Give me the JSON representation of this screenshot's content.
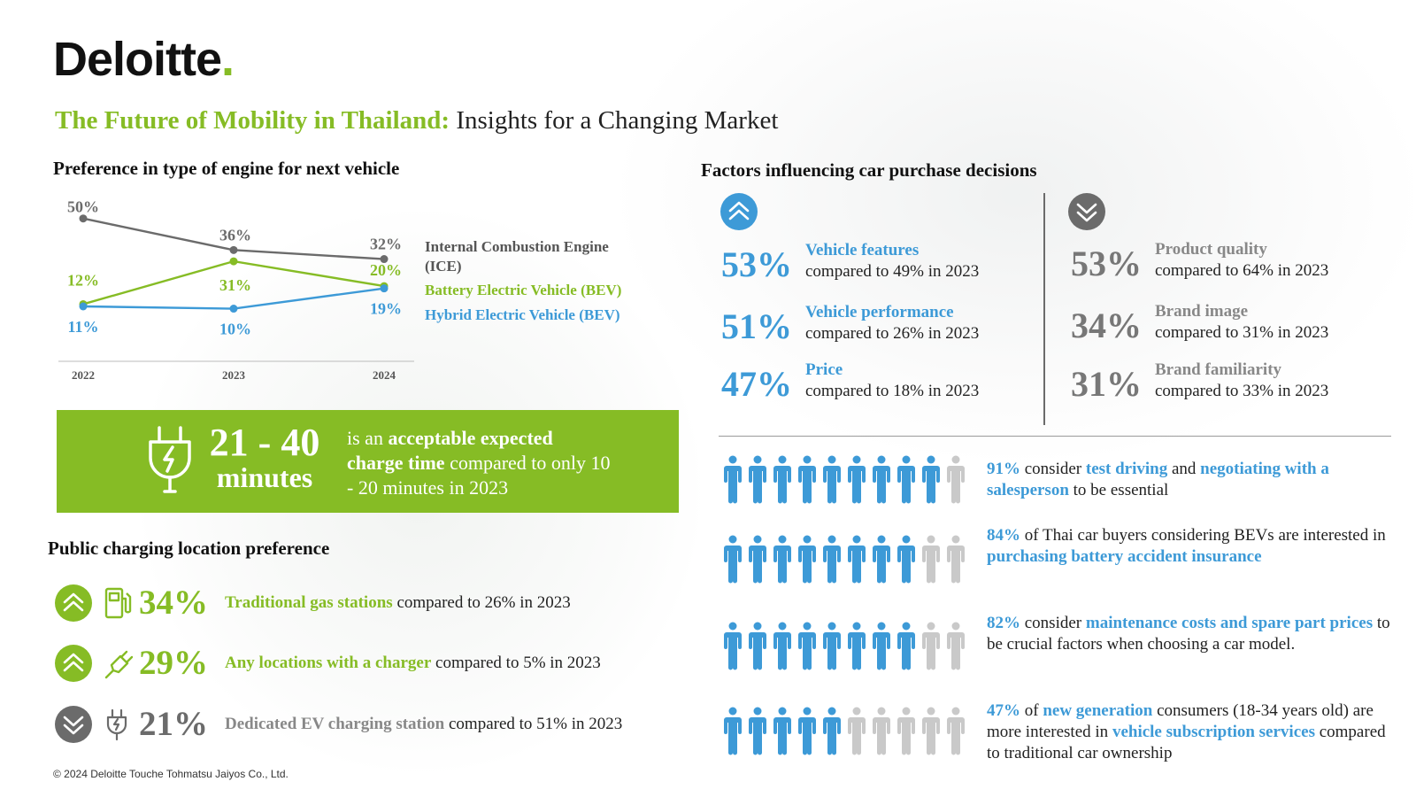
{
  "brand": {
    "name": "Deloitte",
    "dot": "."
  },
  "title": {
    "highlight": "The Future of Mobility in Thailand:",
    "rest": " Insights for a Changing Market"
  },
  "colors": {
    "green": "#86BC25",
    "blue": "#3D9AD7",
    "gray": "#6B6B6B",
    "light_gray": "#C9C9C9"
  },
  "engine_section": {
    "title": "Preference in type of engine for next vehicle"
  },
  "chart_data": {
    "type": "line",
    "title": "Preference in type of engine for next vehicle",
    "x": [
      "2022",
      "2023",
      "2024"
    ],
    "series": [
      {
        "name": "Internal Combustion Engine (ICE)",
        "label_lines": [
          "Internal Combustion Engine",
          "(ICE)"
        ],
        "values": [
          50,
          36,
          32
        ],
        "labels": [
          "50%",
          "36%",
          "32%"
        ],
        "color": "#6B6B6B"
      },
      {
        "name": "Battery Electric Vehicle (BEV)",
        "label_lines": [
          "Battery Electric Vehicle (BEV)"
        ],
        "values": [
          12,
          31,
          20
        ],
        "labels": [
          "12%",
          "31%",
          "20%"
        ],
        "color": "#86BC25"
      },
      {
        "name": "Hybrid Electric Vehicle (BEV)",
        "label_lines": [
          "Hybrid Electric Vehicle (BEV)"
        ],
        "values": [
          11,
          10,
          19
        ],
        "labels": [
          "11%",
          "10%",
          "19%"
        ],
        "color": "#3D9AD7"
      }
    ],
    "ylim": [
      0,
      55
    ],
    "legend": "right"
  },
  "banner": {
    "line1": "21 - 40",
    "line2": "minutes",
    "desc_pre": "is an ",
    "desc_bold": "acceptable expected charge time",
    "desc_post": " compared to only 10 - 20 minutes in 2023",
    "icon": "ev-plug-icon"
  },
  "charging": {
    "title": "Public charging location preference",
    "rows": [
      {
        "trend": "up",
        "icon": "gas-station-icon",
        "pct": "34%",
        "label": "Traditional gas stations",
        "compare": " compared to 26% in 2023"
      },
      {
        "trend": "up",
        "icon": "plug-icon",
        "pct": "29%",
        "label": "Any locations with a charger",
        "compare": " compared to 5% in 2023"
      },
      {
        "trend": "down",
        "icon": "charging-plug-icon",
        "pct": "21%",
        "label": "Dedicated EV charging station",
        "compare": " compared to 51% in 2023"
      }
    ]
  },
  "factors": {
    "title": "Factors influencing car purchase decisions",
    "up": [
      {
        "pct": "53%",
        "label": "Vehicle features",
        "compare": "compared to 49% in 2023"
      },
      {
        "pct": "51%",
        "label": "Vehicle performance",
        "compare": "compared to 26% in 2023"
      },
      {
        "pct": "47%",
        "label": "Price",
        "compare": "compared to 18% in 2023"
      }
    ],
    "down": [
      {
        "pct": "53%",
        "label": "Product quality",
        "compare": "compared to 64% in 2023"
      },
      {
        "pct": "34%",
        "label": "Brand image",
        "compare": "compared to 31% in 2023"
      },
      {
        "pct": "31%",
        "label": "Brand familiarity",
        "compare": "compared to 33% in 2023"
      }
    ]
  },
  "stats": [
    {
      "pct": "91%",
      "filled": 9,
      "t1": " consider ",
      "b1": "test driving",
      "t2": " and ",
      "b2": "negotiating with a salesperson",
      "t3": " to be essential"
    },
    {
      "pct": "84%",
      "filled": 8,
      "t1": " of Thai car buyers considering BEVs are interested in ",
      "b1": "purchasing battery accident insurance",
      "t2": "",
      "b2": "",
      "t3": ""
    },
    {
      "pct": "82%",
      "filled": 8,
      "t1": " consider ",
      "b1": "maintenance costs and spare part prices",
      "t2": " to be crucial factors when choosing a car model.",
      "b2": "",
      "t3": ""
    },
    {
      "pct": "47%",
      "filled": 5,
      "t1": " of ",
      "b1": "new generation",
      "t2": " consumers (18-34 years old) are more interested in ",
      "b2": "vehicle subscription services",
      "t3": " compared to traditional car ownership"
    }
  ],
  "footer": "© 2024 Deloitte Touche Tohmatsu Jaiyos Co., Ltd."
}
